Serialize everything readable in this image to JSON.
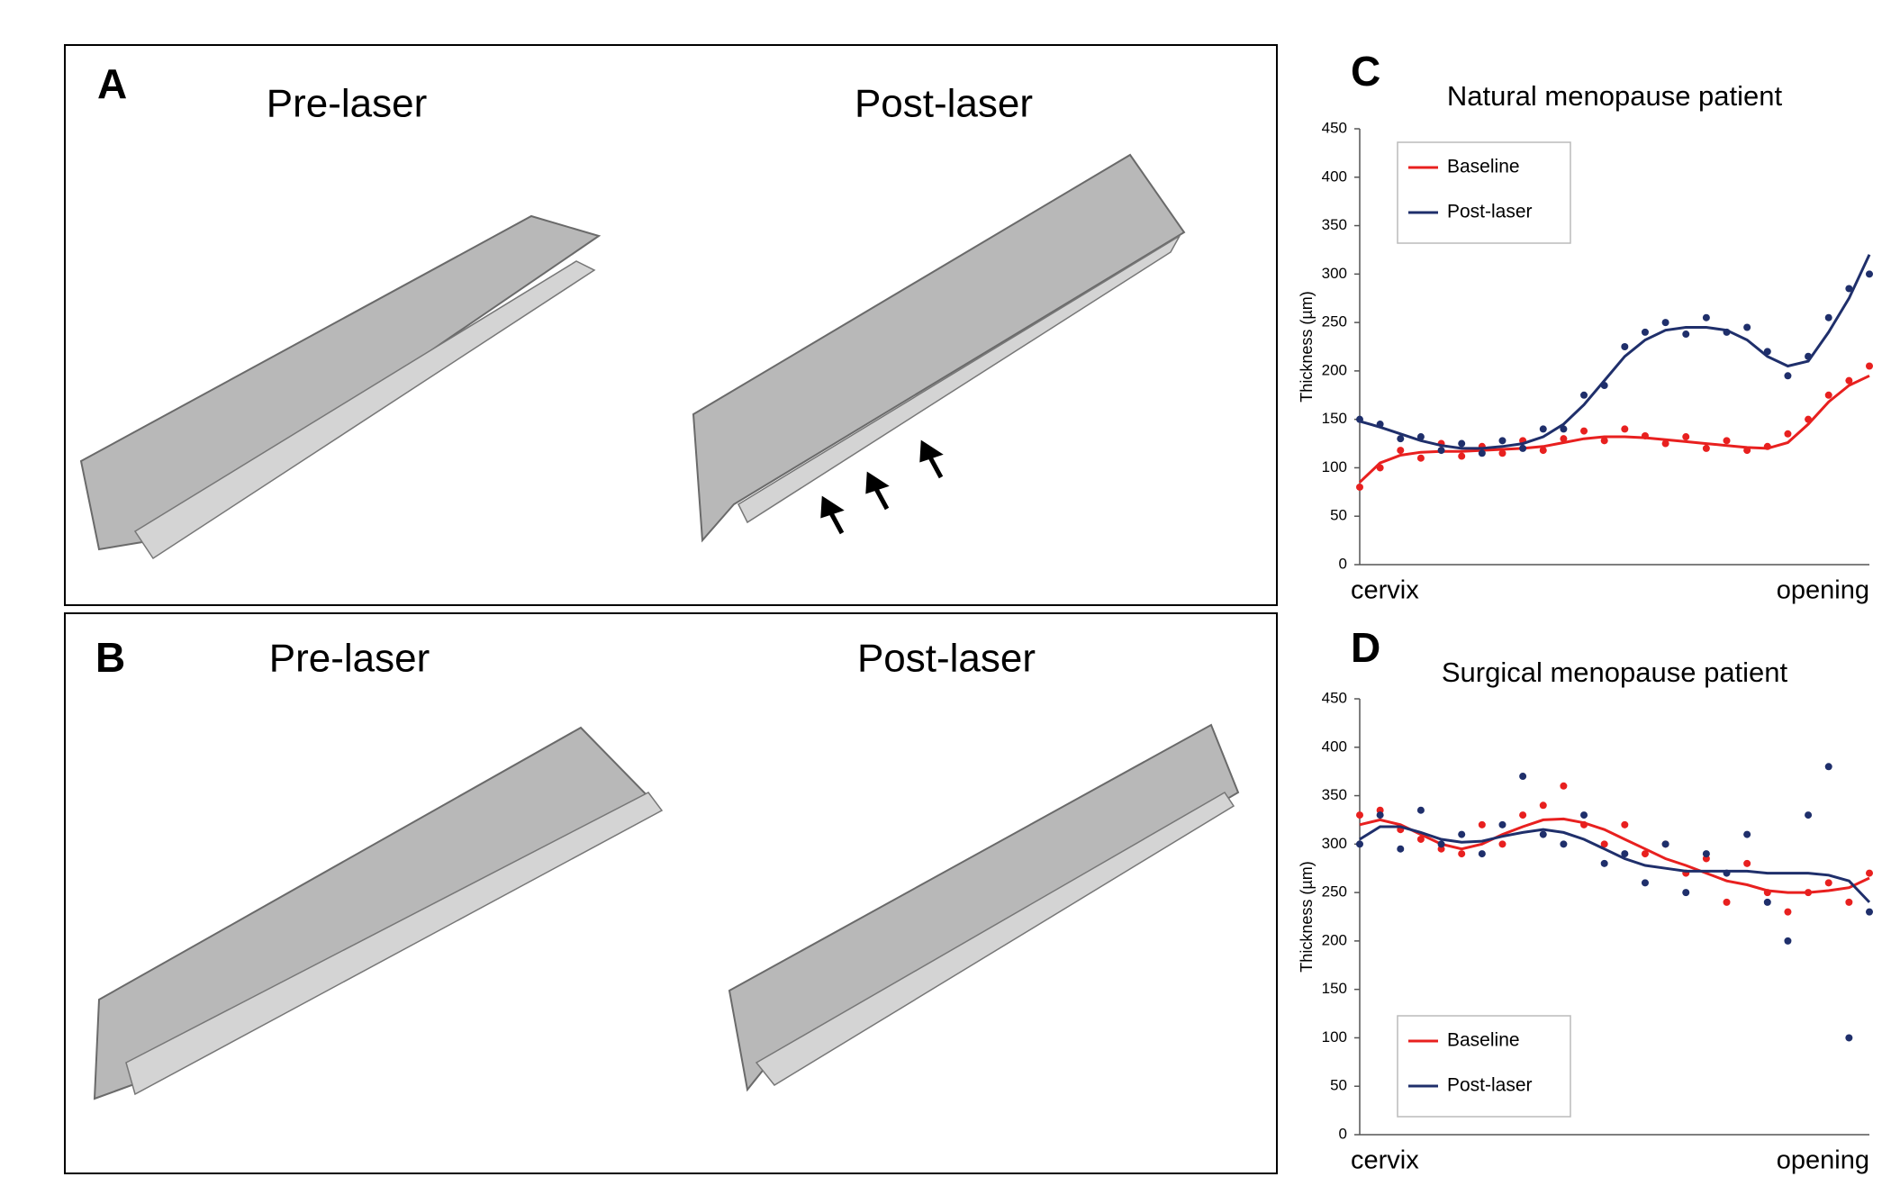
{
  "image_panels": [
    {
      "label": "A",
      "titles": [
        "Pre-laser",
        "Post-laser"
      ]
    },
    {
      "label": "B",
      "titles": [
        "Pre-laser",
        "Post-laser"
      ]
    }
  ],
  "chart_data": [
    {
      "type": "line",
      "label": "C",
      "title": "Natural menopause patient",
      "y_label": "Thickness (µm)",
      "categories": [
        "cervix",
        null,
        null,
        null,
        null,
        null,
        null,
        null,
        null,
        null,
        null,
        null,
        null,
        null,
        null,
        null,
        null,
        null,
        null,
        null,
        null,
        null,
        null,
        null,
        null,
        "opening"
      ],
      "ylim": [
        0,
        450
      ],
      "yticks": [
        0,
        50,
        100,
        150,
        200,
        250,
        300,
        350,
        400,
        450
      ],
      "legend": "upper-left",
      "series": [
        {
          "name": "Baseline",
          "color": "#e8201f",
          "values": [
            85,
            105,
            113,
            116,
            117,
            117,
            118,
            119,
            120,
            122,
            126,
            130,
            132,
            132,
            131,
            129,
            127,
            125,
            123,
            121,
            120,
            126,
            145,
            168,
            185,
            195
          ],
          "points": [
            80,
            100,
            118,
            110,
            125,
            112,
            122,
            115,
            128,
            118,
            130,
            138,
            128,
            140,
            133,
            125,
            132,
            120,
            128,
            118,
            122,
            135,
            150,
            175,
            190,
            205
          ]
        },
        {
          "name": "Post-laser",
          "color": "#1f2f6b",
          "values": [
            148,
            142,
            135,
            128,
            123,
            120,
            120,
            122,
            125,
            132,
            145,
            165,
            190,
            215,
            232,
            242,
            245,
            245,
            242,
            232,
            215,
            205,
            210,
            240,
            275,
            320
          ],
          "points": [
            150,
            145,
            130,
            132,
            118,
            125,
            115,
            128,
            120,
            140,
            140,
            175,
            185,
            225,
            240,
            250,
            238,
            255,
            240,
            245,
            220,
            195,
            215,
            255,
            285,
            300
          ]
        }
      ]
    },
    {
      "type": "line",
      "label": "D",
      "title": "Surgical menopause patient",
      "y_label": "Thickness (µm)",
      "categories": [
        "cervix",
        null,
        null,
        null,
        null,
        null,
        null,
        null,
        null,
        null,
        null,
        null,
        null,
        null,
        null,
        null,
        null,
        null,
        null,
        null,
        null,
        null,
        null,
        null,
        null,
        "opening"
      ],
      "ylim": [
        0,
        450
      ],
      "yticks": [
        0,
        50,
        100,
        150,
        200,
        250,
        300,
        350,
        400,
        450
      ],
      "legend": "lower-left",
      "series": [
        {
          "name": "Baseline",
          "color": "#e8201f",
          "values": [
            320,
            325,
            320,
            310,
            300,
            295,
            300,
            310,
            318,
            325,
            326,
            322,
            315,
            305,
            295,
            285,
            278,
            270,
            262,
            258,
            252,
            250,
            250,
            252,
            255,
            265
          ],
          "points": [
            330,
            335,
            315,
            305,
            295,
            290,
            320,
            300,
            330,
            340,
            360,
            320,
            300,
            320,
            290,
            300,
            270,
            285,
            240,
            280,
            250,
            230,
            250,
            260,
            240,
            270
          ]
        },
        {
          "name": "Post-laser",
          "color": "#1f2f6b",
          "values": [
            305,
            318,
            318,
            312,
            305,
            302,
            303,
            308,
            312,
            315,
            312,
            305,
            295,
            285,
            278,
            275,
            272,
            272,
            272,
            272,
            270,
            270,
            270,
            268,
            262,
            240
          ],
          "points": [
            300,
            330,
            295,
            335,
            300,
            310,
            290,
            320,
            370,
            310,
            300,
            330,
            280,
            290,
            260,
            300,
            250,
            290,
            270,
            310,
            240,
            200,
            330,
            380,
            100,
            230
          ]
        }
      ]
    }
  ]
}
